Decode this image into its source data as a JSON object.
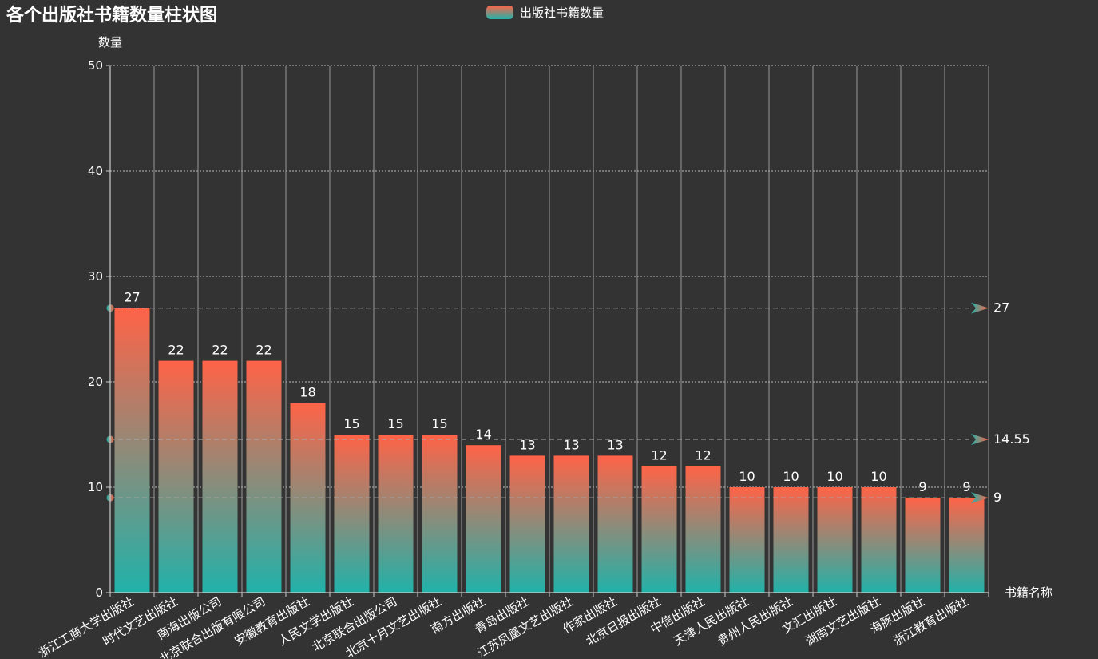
{
  "chart_data": {
    "type": "bar",
    "title": "各个出版社书籍数量柱状图",
    "xlabel": "书籍名称",
    "ylabel": "数量",
    "ylim": [
      0,
      50
    ],
    "yticks": [
      "0",
      "10",
      "20",
      "30",
      "40",
      "50"
    ],
    "grid": true,
    "legend_position": "top-center",
    "categories": [
      "浙江工商大学出版社",
      "时代文艺出版社",
      "南海出版公司",
      "北京联合出版有限公司",
      "安徽教育出版社",
      "人民文学出版社",
      "北京联合出版公司",
      "北京十月文艺出版社",
      "南方出版社",
      "青岛出版社",
      "江苏凤凰文艺出版社",
      "作家出版社",
      "北京日报出版社",
      "中信出版社",
      "天津人民出版社",
      "贵州人民出版社",
      "文汇出版社",
      "湖南文艺出版社",
      "海豚出版社",
      "浙江教育出版社"
    ],
    "series": [
      {
        "name": "出版社书籍数量",
        "values": [
          27,
          22,
          22,
          22,
          18,
          15,
          15,
          15,
          14,
          13,
          13,
          13,
          12,
          12,
          10,
          10,
          10,
          10,
          9,
          9
        ]
      }
    ],
    "mark_lines": [
      {
        "value": 27,
        "label": "27"
      },
      {
        "value": 14.55,
        "label": "14.55"
      },
      {
        "value": 9,
        "label": "9"
      }
    ],
    "colors": {
      "background": "#333333",
      "bar_top": "#ff6347",
      "bar_bottom": "#20b2aa",
      "axis": "#cccccc",
      "text": "#ffffff",
      "grid": "#aaaaaa"
    }
  }
}
